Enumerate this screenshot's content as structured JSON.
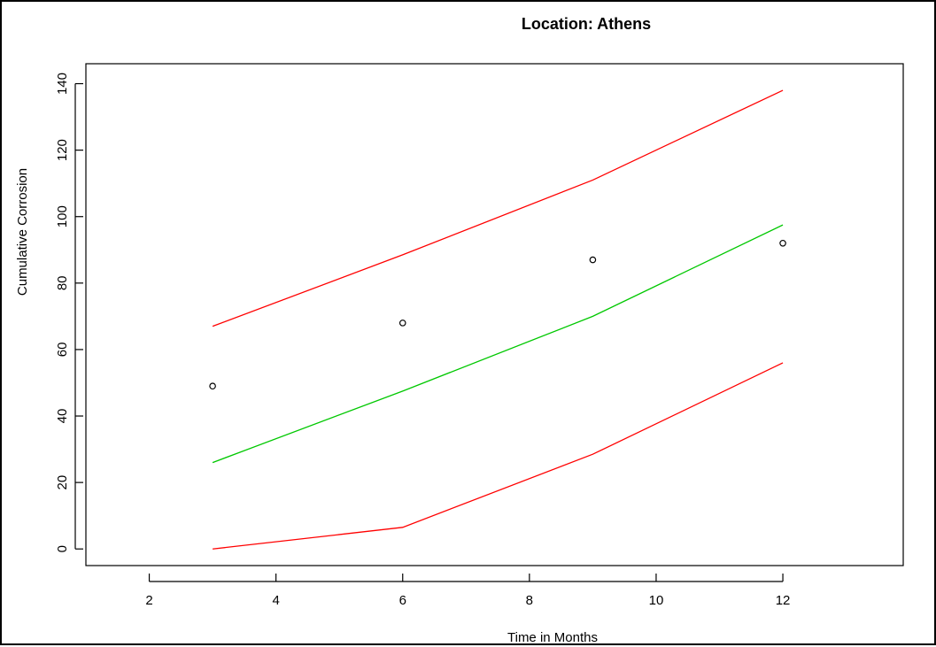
{
  "chart_data": {
    "type": "line",
    "title": "Location:  Athens",
    "xlabel": "Time in Months",
    "ylabel": "Cumulative Corrosion",
    "xlim": [
      1.0,
      13.9
    ],
    "ylim": [
      -5,
      146
    ],
    "x_ticks": [
      2,
      4,
      6,
      8,
      10,
      12
    ],
    "y_ticks": [
      0,
      20,
      40,
      60,
      80,
      100,
      120,
      140
    ],
    "grid": false,
    "legend": "none",
    "series": [
      {
        "color": "#ff0000",
        "style": "line",
        "x": [
          3,
          6,
          9,
          12
        ],
        "y": [
          67,
          88.5,
          111,
          138
        ]
      },
      {
        "color": "#00c800",
        "style": "line",
        "x": [
          3,
          6,
          9,
          12
        ],
        "y": [
          26,
          47.5,
          70,
          97.5
        ]
      },
      {
        "color": "#ff0000",
        "style": "line",
        "x": [
          3,
          6,
          9,
          12
        ],
        "y": [
          0,
          6.5,
          28.5,
          56
        ]
      },
      {
        "color": "#000000",
        "style": "points",
        "x": [
          3,
          6,
          9,
          12
        ],
        "y": [
          49,
          68,
          87,
          92
        ]
      }
    ]
  }
}
